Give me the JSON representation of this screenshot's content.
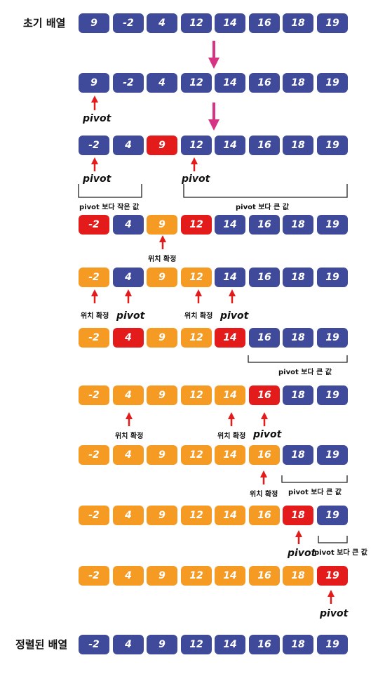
{
  "labels": {
    "initial": "초기 배열",
    "sorted": "정렬된 배열",
    "pivot": "pivot",
    "fixed": "위치 확정",
    "smaller": "pivot 보다 작은 값",
    "larger": "pivot 보다 큰 값"
  },
  "colors": {
    "unsorted": "#3f4a9a",
    "highlight": "#e41b1b",
    "fixed": "#f59a23",
    "step_arrow": "#d63384",
    "pointer_arrow": "#e41b1b"
  },
  "rows": [
    {
      "id": "initial",
      "values": [
        "9",
        "-2",
        "4",
        "12",
        "14",
        "16",
        "18",
        "19"
      ],
      "states": [
        "b",
        "b",
        "b",
        "b",
        "b",
        "b",
        "b",
        "b"
      ]
    },
    {
      "id": "step1",
      "values": [
        "9",
        "-2",
        "4",
        "12",
        "14",
        "16",
        "18",
        "19"
      ],
      "states": [
        "b",
        "b",
        "b",
        "b",
        "b",
        "b",
        "b",
        "b"
      ]
    },
    {
      "id": "step2",
      "values": [
        "-2",
        "4",
        "9",
        "12",
        "14",
        "16",
        "18",
        "19"
      ],
      "states": [
        "b",
        "b",
        "r",
        "b",
        "b",
        "b",
        "b",
        "b"
      ]
    },
    {
      "id": "step3",
      "values": [
        "-2",
        "4",
        "9",
        "12",
        "14",
        "16",
        "18",
        "19"
      ],
      "states": [
        "r",
        "b",
        "o",
        "r",
        "b",
        "b",
        "b",
        "b"
      ]
    },
    {
      "id": "step4",
      "values": [
        "-2",
        "4",
        "9",
        "12",
        "14",
        "16",
        "18",
        "19"
      ],
      "states": [
        "o",
        "b",
        "o",
        "o",
        "b",
        "b",
        "b",
        "b"
      ]
    },
    {
      "id": "step5",
      "values": [
        "-2",
        "4",
        "9",
        "12",
        "14",
        "16",
        "18",
        "19"
      ],
      "states": [
        "o",
        "r",
        "o",
        "o",
        "r",
        "b",
        "b",
        "b"
      ]
    },
    {
      "id": "step6",
      "values": [
        "-2",
        "4",
        "9",
        "12",
        "14",
        "16",
        "18",
        "19"
      ],
      "states": [
        "o",
        "o",
        "o",
        "o",
        "o",
        "r",
        "b",
        "b"
      ]
    },
    {
      "id": "step7",
      "values": [
        "-2",
        "4",
        "9",
        "12",
        "14",
        "16",
        "18",
        "19"
      ],
      "states": [
        "o",
        "o",
        "o",
        "o",
        "o",
        "o",
        "b",
        "b"
      ]
    },
    {
      "id": "step8",
      "values": [
        "-2",
        "4",
        "9",
        "12",
        "14",
        "16",
        "18",
        "19"
      ],
      "states": [
        "o",
        "o",
        "o",
        "o",
        "o",
        "o",
        "r",
        "b"
      ]
    },
    {
      "id": "step9",
      "values": [
        "-2",
        "4",
        "9",
        "12",
        "14",
        "16",
        "18",
        "19"
      ],
      "states": [
        "o",
        "o",
        "o",
        "o",
        "o",
        "o",
        "o",
        "r"
      ]
    },
    {
      "id": "sorted",
      "values": [
        "-2",
        "4",
        "9",
        "12",
        "14",
        "16",
        "18",
        "19"
      ],
      "states": [
        "b",
        "b",
        "b",
        "b",
        "b",
        "b",
        "b",
        "b"
      ]
    }
  ]
}
